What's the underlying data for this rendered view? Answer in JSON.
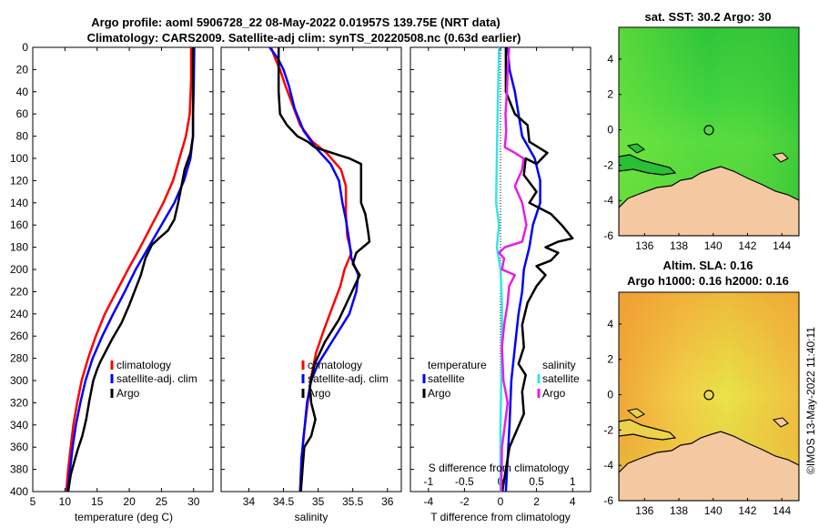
{
  "header": {
    "line1": "Argo profile: aoml 5906728_22 08-May-2022 0.01957S 139.75E (NRT data)",
    "line2": "Climatology: CARS2009. Satellite-adj clim: synTS_20220508.nc (0.63d earlier)"
  },
  "colors": {
    "climatology": "#ff0000",
    "satellite": "#0000ff",
    "argo": "#000000",
    "cyan": "#33e6e6",
    "magenta": "#e61ee6",
    "land": "#f4c8a0"
  },
  "chart_data": [
    {
      "type": "line",
      "id": "temperature",
      "xlabel": "temperature (deg C)",
      "xlim": [
        5,
        33
      ],
      "xticks": [
        5,
        10,
        15,
        20,
        25,
        30
      ],
      "ylim": [
        0,
        400
      ],
      "yticks": [
        0,
        20,
        40,
        60,
        80,
        100,
        120,
        140,
        160,
        180,
        200,
        220,
        240,
        260,
        280,
        300,
        320,
        340,
        360,
        380,
        400
      ],
      "legend": [
        "climatology",
        "satellite-adj. clim",
        "Argo"
      ],
      "series": [
        {
          "name": "climatology",
          "color": "#ff0000",
          "points": [
            [
              29.6,
              0
            ],
            [
              29.6,
              30
            ],
            [
              29.4,
              60
            ],
            [
              28.8,
              80
            ],
            [
              27.8,
              100
            ],
            [
              26.8,
              120
            ],
            [
              25.3,
              140
            ],
            [
              23.5,
              160
            ],
            [
              21.7,
              180
            ],
            [
              19.8,
              200
            ],
            [
              18.0,
              220
            ],
            [
              16.2,
              240
            ],
            [
              14.8,
              260
            ],
            [
              13.6,
              280
            ],
            [
              12.6,
              300
            ],
            [
              11.9,
              320
            ],
            [
              11.3,
              340
            ],
            [
              10.9,
              360
            ],
            [
              10.5,
              380
            ],
            [
              10.2,
              400
            ]
          ]
        },
        {
          "name": "satellite-adj. clim",
          "color": "#0000ff",
          "points": [
            [
              30.1,
              0
            ],
            [
              30.0,
              40
            ],
            [
              29.9,
              60
            ],
            [
              29.9,
              80
            ],
            [
              29.5,
              100
            ],
            [
              28.5,
              120
            ],
            [
              27.0,
              140
            ],
            [
              25.0,
              160
            ],
            [
              23.0,
              180
            ],
            [
              21.0,
              200
            ],
            [
              19.3,
              220
            ],
            [
              17.5,
              240
            ],
            [
              15.8,
              260
            ],
            [
              14.3,
              280
            ],
            [
              13.2,
              300
            ],
            [
              12.4,
              320
            ],
            [
              11.7,
              340
            ],
            [
              11.2,
              360
            ],
            [
              10.8,
              380
            ],
            [
              10.4,
              400
            ]
          ]
        },
        {
          "name": "Argo",
          "color": "#000000",
          "points": [
            [
              29.9,
              0
            ],
            [
              29.9,
              40
            ],
            [
              29.9,
              80
            ],
            [
              29.5,
              95
            ],
            [
              28.6,
              110
            ],
            [
              28.1,
              125
            ],
            [
              27.6,
              140
            ],
            [
              27.0,
              155
            ],
            [
              26.0,
              165
            ],
            [
              24.6,
              172
            ],
            [
              23.5,
              178
            ],
            [
              22.5,
              190
            ],
            [
              21.8,
              205
            ],
            [
              20.8,
              220
            ],
            [
              20.0,
              232
            ],
            [
              18.8,
              248
            ],
            [
              17.4,
              262
            ],
            [
              16.5,
              272
            ],
            [
              15.5,
              283
            ],
            [
              15.0,
              290
            ],
            [
              14.4,
              300
            ],
            [
              13.8,
              318
            ],
            [
              13.3,
              335
            ],
            [
              12.7,
              350
            ],
            [
              12.0,
              362
            ],
            [
              11.5,
              372
            ],
            [
              10.9,
              385
            ],
            [
              10.5,
              400
            ]
          ]
        }
      ]
    },
    {
      "type": "line",
      "id": "salinity",
      "xlabel": "salinity",
      "xlim": [
        33.6,
        36.2
      ],
      "xticks": [
        34,
        34.5,
        35,
        35.5,
        36
      ],
      "ylim": [
        0,
        400
      ],
      "legend": [
        "climatology",
        "satellite-adj. clim",
        "Argo"
      ],
      "series": [
        {
          "name": "climatology",
          "color": "#ff0000",
          "points": [
            [
              34.32,
              0
            ],
            [
              34.38,
              10
            ],
            [
              34.45,
              20
            ],
            [
              34.53,
              35
            ],
            [
              34.62,
              50
            ],
            [
              34.74,
              70
            ],
            [
              34.92,
              85
            ],
            [
              35.12,
              95
            ],
            [
              35.33,
              110
            ],
            [
              35.4,
              125
            ],
            [
              35.4,
              150
            ],
            [
              35.42,
              170
            ],
            [
              35.48,
              185
            ],
            [
              35.38,
              200
            ],
            [
              35.32,
              215
            ],
            [
              35.2,
              235
            ],
            [
              35.08,
              255
            ],
            [
              34.97,
              275
            ],
            [
              34.89,
              300
            ],
            [
              34.84,
              325
            ],
            [
              34.79,
              350
            ],
            [
              34.76,
              375
            ],
            [
              34.74,
              400
            ]
          ]
        },
        {
          "name": "satellite-adj. clim",
          "color": "#0000ff",
          "points": [
            [
              34.3,
              0
            ],
            [
              34.42,
              10
            ],
            [
              34.5,
              20
            ],
            [
              34.58,
              35
            ],
            [
              34.66,
              55
            ],
            [
              34.79,
              75
            ],
            [
              34.96,
              90
            ],
            [
              35.18,
              105
            ],
            [
              35.3,
              120
            ],
            [
              35.35,
              140
            ],
            [
              35.4,
              155
            ],
            [
              35.45,
              175
            ],
            [
              35.48,
              190
            ],
            [
              35.58,
              205
            ],
            [
              35.55,
              220
            ],
            [
              35.45,
              240
            ],
            [
              35.35,
              250
            ],
            [
              35.15,
              270
            ],
            [
              35.0,
              285
            ],
            [
              34.9,
              300
            ],
            [
              34.84,
              320
            ],
            [
              34.8,
              345
            ],
            [
              34.76,
              370
            ],
            [
              34.74,
              400
            ]
          ]
        },
        {
          "name": "Argo",
          "color": "#000000",
          "points": [
            [
              34.43,
              0
            ],
            [
              34.43,
              40
            ],
            [
              34.45,
              60
            ],
            [
              34.55,
              70
            ],
            [
              34.7,
              80
            ],
            [
              34.85,
              85
            ],
            [
              34.95,
              90
            ],
            [
              35.2,
              95
            ],
            [
              35.45,
              100
            ],
            [
              35.62,
              105
            ],
            [
              35.62,
              140
            ],
            [
              35.68,
              150
            ],
            [
              35.72,
              165
            ],
            [
              35.74,
              175
            ],
            [
              35.55,
              185
            ],
            [
              35.5,
              195
            ],
            [
              35.6,
              205
            ],
            [
              35.45,
              225
            ],
            [
              35.3,
              245
            ],
            [
              35.1,
              265
            ],
            [
              34.95,
              285
            ],
            [
              34.88,
              305
            ],
            [
              34.9,
              320
            ],
            [
              34.96,
              335
            ],
            [
              34.9,
              350
            ],
            [
              34.8,
              360
            ],
            [
              34.78,
              375
            ],
            [
              34.75,
              400
            ]
          ]
        }
      ]
    },
    {
      "type": "line",
      "id": "difference",
      "xlabel": "T difference from climatology",
      "xlim": [
        -5,
        5
      ],
      "xticks": [
        -4,
        -2,
        0,
        2,
        4
      ],
      "top_label": "S difference from climatology",
      "top_xlim": [
        -1.25,
        1.25
      ],
      "top_xticks": [
        -1,
        -0.5,
        0,
        0.5,
        1
      ],
      "top_xtick_labels": [
        "-1",
        "-0.5",
        "0",
        "0.5",
        "1"
      ],
      "ylim": [
        0,
        400
      ],
      "legend_temperature": [
        "temperature",
        "satellite",
        "Argo"
      ],
      "legend_salinity": [
        "salinity",
        "satellite",
        "Argo"
      ],
      "series": [
        {
          "name": "T satellite",
          "color": "#0000ff",
          "points": [
            [
              0.4,
              0
            ],
            [
              0.5,
              20
            ],
            [
              0.8,
              40
            ],
            [
              1.0,
              60
            ],
            [
              1.2,
              80
            ],
            [
              1.9,
              100
            ],
            [
              2.2,
              120
            ],
            [
              2.2,
              140
            ],
            [
              1.8,
              160
            ],
            [
              1.6,
              180
            ],
            [
              1.3,
              200
            ],
            [
              1.2,
              220
            ],
            [
              1.0,
              240
            ],
            [
              0.8,
              270
            ],
            [
              0.6,
              300
            ],
            [
              0.5,
              340
            ],
            [
              0.3,
              400
            ]
          ]
        },
        {
          "name": "T Argo",
          "color": "#000000",
          "points": [
            [
              0.3,
              0
            ],
            [
              0.3,
              40
            ],
            [
              0.8,
              60
            ],
            [
              1.5,
              70
            ],
            [
              1.6,
              85
            ],
            [
              2.6,
              95
            ],
            [
              2.0,
              105
            ],
            [
              1.4,
              100
            ],
            [
              1.3,
              115
            ],
            [
              2.0,
              130
            ],
            [
              1.6,
              140
            ],
            [
              2.8,
              150
            ],
            [
              3.4,
              160
            ],
            [
              4.0,
              172
            ],
            [
              3.2,
              175
            ],
            [
              2.5,
              180
            ],
            [
              3.2,
              185
            ],
            [
              2.8,
              192
            ],
            [
              2.0,
              197
            ],
            [
              2.5,
              205
            ],
            [
              2.0,
              215
            ],
            [
              1.5,
              230
            ],
            [
              1.2,
              250
            ],
            [
              1.3,
              270
            ],
            [
              1.0,
              285
            ],
            [
              1.4,
              295
            ],
            [
              1.2,
              310
            ],
            [
              1.3,
              330
            ],
            [
              0.9,
              345
            ],
            [
              0.5,
              360
            ],
            [
              0.3,
              380
            ],
            [
              0.1,
              400
            ]
          ]
        },
        {
          "name": "S satellite",
          "color": "#33e6e6",
          "points": [
            [
              -0.02,
              0
            ],
            [
              -0.03,
              30
            ],
            [
              -0.04,
              60
            ],
            [
              -0.05,
              100
            ],
            [
              -0.06,
              140
            ],
            [
              -0.02,
              160
            ],
            [
              -0.05,
              180
            ],
            [
              0.0,
              200
            ],
            [
              0.02,
              230
            ],
            [
              0.02,
              260
            ],
            [
              0.01,
              300
            ],
            [
              0.0,
              340
            ],
            [
              0.0,
              400
            ]
          ]
        },
        {
          "name": "S Argo",
          "color": "#e61ee6",
          "points": [
            [
              0.12,
              0
            ],
            [
              0.1,
              20
            ],
            [
              0.09,
              40
            ],
            [
              0.07,
              60
            ],
            [
              0.08,
              75
            ],
            [
              0.06,
              90
            ],
            [
              0.2,
              95
            ],
            [
              0.32,
              100
            ],
            [
              0.3,
              110
            ],
            [
              0.2,
              125
            ],
            [
              0.3,
              140
            ],
            [
              0.36,
              160
            ],
            [
              0.3,
              175
            ],
            [
              0.06,
              180
            ],
            [
              -0.02,
              185
            ],
            [
              0.05,
              190
            ],
            [
              0.02,
              200
            ],
            [
              0.2,
              205
            ],
            [
              0.12,
              215
            ],
            [
              0.1,
              230
            ],
            [
              0.05,
              250
            ],
            [
              0.02,
              270
            ],
            [
              0.04,
              300
            ],
            [
              0.1,
              320
            ],
            [
              0.06,
              340
            ],
            [
              0.02,
              360
            ],
            [
              0.01,
              400
            ]
          ]
        }
      ]
    }
  ],
  "maps": {
    "sst": {
      "title": "sat. SST: 30.2 Argo: 30",
      "xticks": [
        "136",
        "138",
        "140",
        "142",
        "144"
      ],
      "yticks": [
        "4",
        "2",
        "0",
        "-2",
        "-4",
        "-6"
      ]
    },
    "sla": {
      "title1": "Altim. SLA: 0.16",
      "title2": "Argo h1000: 0.16 h2000: 0.16",
      "xticks": [
        "136",
        "138",
        "140",
        "142",
        "144"
      ],
      "yticks": [
        "4",
        "2",
        "0",
        "-2",
        "-4",
        "-6"
      ]
    },
    "float_position": {
      "lon": 139.75,
      "lat": -0.02
    }
  },
  "watermark": "©IMOS 13-May-2022 11:40:11"
}
